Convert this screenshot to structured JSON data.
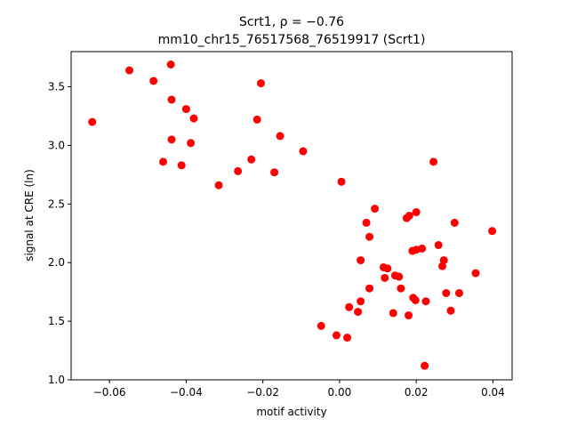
{
  "chart_data": {
    "type": "scatter",
    "title_line1": "Scrt1, ρ = −0.76",
    "title_line2": "mm10_chr15_76517568_76519917 (Scrt1)",
    "xlabel": "motif activity",
    "ylabel": "signal at CRE (ln)",
    "xlim": [
      -0.07,
      0.045
    ],
    "ylim": [
      1.0,
      3.8
    ],
    "xticks": [
      -0.06,
      -0.04,
      -0.02,
      0.0,
      0.02,
      0.04
    ],
    "xtick_labels": [
      "−0.06",
      "−0.04",
      "−0.02",
      "0.00",
      "0.02",
      "0.04"
    ],
    "yticks": [
      1.0,
      1.5,
      2.0,
      2.5,
      3.0,
      3.5
    ],
    "ytick_labels": [
      "1.0",
      "1.5",
      "2.0",
      "2.5",
      "3.0",
      "3.5"
    ],
    "marker_color": "#ff0000",
    "grid": false,
    "points": [
      {
        "x": -0.0645,
        "y": 3.2
      },
      {
        "x": -0.0548,
        "y": 3.64
      },
      {
        "x": -0.0485,
        "y": 3.55
      },
      {
        "x": -0.046,
        "y": 2.86
      },
      {
        "x": -0.044,
        "y": 3.69
      },
      {
        "x": -0.0438,
        "y": 3.39
      },
      {
        "x": -0.0438,
        "y": 3.05
      },
      {
        "x": -0.0412,
        "y": 2.83
      },
      {
        "x": -0.04,
        "y": 3.31
      },
      {
        "x": -0.0388,
        "y": 3.02
      },
      {
        "x": -0.038,
        "y": 3.23
      },
      {
        "x": -0.0315,
        "y": 2.66
      },
      {
        "x": -0.0265,
        "y": 2.78
      },
      {
        "x": -0.023,
        "y": 2.88
      },
      {
        "x": -0.0215,
        "y": 3.22
      },
      {
        "x": -0.0205,
        "y": 3.53
      },
      {
        "x": -0.017,
        "y": 2.77
      },
      {
        "x": -0.0155,
        "y": 3.08
      },
      {
        "x": -0.0095,
        "y": 2.95
      },
      {
        "x": -0.0048,
        "y": 1.46
      },
      {
        "x": -0.0008,
        "y": 1.38
      },
      {
        "x": 0.0005,
        "y": 2.69
      },
      {
        "x": 0.002,
        "y": 1.36
      },
      {
        "x": 0.0025,
        "y": 1.62
      },
      {
        "x": 0.0048,
        "y": 1.58
      },
      {
        "x": 0.0055,
        "y": 1.67
      },
      {
        "x": 0.0055,
        "y": 2.02
      },
      {
        "x": 0.007,
        "y": 2.34
      },
      {
        "x": 0.0078,
        "y": 2.22
      },
      {
        "x": 0.0078,
        "y": 1.78
      },
      {
        "x": 0.0092,
        "y": 2.46
      },
      {
        "x": 0.0115,
        "y": 1.96
      },
      {
        "x": 0.0118,
        "y": 1.87
      },
      {
        "x": 0.0125,
        "y": 1.95
      },
      {
        "x": 0.014,
        "y": 1.57
      },
      {
        "x": 0.0145,
        "y": 1.89
      },
      {
        "x": 0.0155,
        "y": 1.88
      },
      {
        "x": 0.016,
        "y": 1.78
      },
      {
        "x": 0.0175,
        "y": 2.38
      },
      {
        "x": 0.0182,
        "y": 2.4
      },
      {
        "x": 0.018,
        "y": 1.55
      },
      {
        "x": 0.019,
        "y": 2.1
      },
      {
        "x": 0.0192,
        "y": 1.7
      },
      {
        "x": 0.0198,
        "y": 1.68
      },
      {
        "x": 0.02,
        "y": 2.11
      },
      {
        "x": 0.02,
        "y": 2.43
      },
      {
        "x": 0.0215,
        "y": 2.12
      },
      {
        "x": 0.0222,
        "y": 1.12
      },
      {
        "x": 0.0225,
        "y": 1.67
      },
      {
        "x": 0.0245,
        "y": 2.86
      },
      {
        "x": 0.0258,
        "y": 2.15
      },
      {
        "x": 0.0268,
        "y": 1.97
      },
      {
        "x": 0.0272,
        "y": 2.02
      },
      {
        "x": 0.0278,
        "y": 1.74
      },
      {
        "x": 0.029,
        "y": 1.59
      },
      {
        "x": 0.03,
        "y": 2.34
      },
      {
        "x": 0.0312,
        "y": 1.74
      },
      {
        "x": 0.0355,
        "y": 1.91
      },
      {
        "x": 0.0398,
        "y": 2.27
      }
    ]
  }
}
